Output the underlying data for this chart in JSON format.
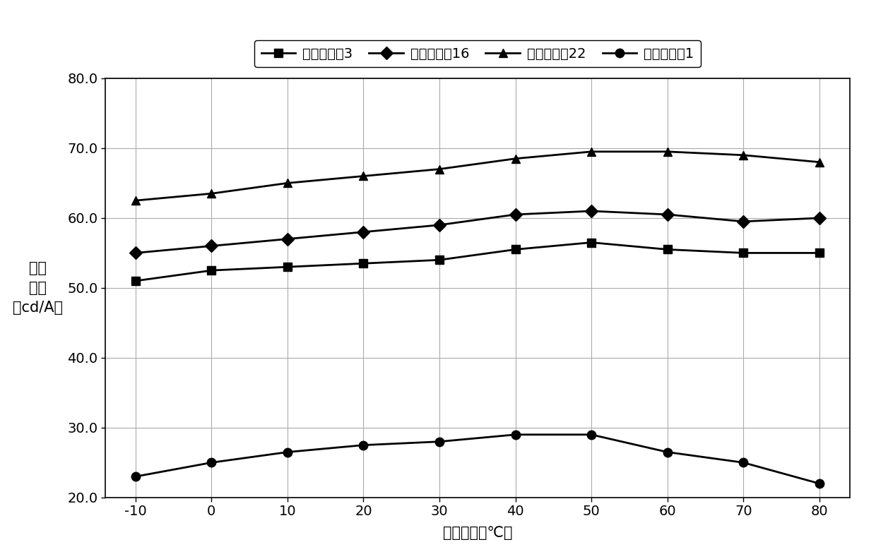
{
  "x": [
    -10,
    0,
    10,
    20,
    30,
    40,
    50,
    60,
    70,
    80
  ],
  "series_order": [
    "器件实施例3",
    "器件实施例16",
    "器件实施例22",
    "器件比较例1"
  ],
  "series": {
    "器件实施例3": {
      "y": [
        51.0,
        52.5,
        53.0,
        53.5,
        54.0,
        55.5,
        56.5,
        55.5,
        55.0,
        55.0
      ],
      "marker": "s",
      "label": "器件实施例3"
    },
    "器件实施例16": {
      "y": [
        55.0,
        56.0,
        57.0,
        58.0,
        59.0,
        60.5,
        61.0,
        60.5,
        59.5,
        60.0
      ],
      "marker": "D",
      "label": "器件实施例16"
    },
    "器件实施例22": {
      "y": [
        62.5,
        63.5,
        65.0,
        66.0,
        67.0,
        68.5,
        69.5,
        69.5,
        69.0,
        68.0
      ],
      "marker": "^",
      "label": "器件实施例22"
    },
    "器件比较例1": {
      "y": [
        23.0,
        25.0,
        26.5,
        27.5,
        28.0,
        29.0,
        29.0,
        26.5,
        25.0,
        22.0
      ],
      "marker": "o",
      "label": "器件比较例1"
    }
  },
  "line_color": "#000000",
  "ylabel_lines": [
    "电",
    "流",
    "效",
    "率",
    "（cd/A）"
  ],
  "xlabel": "测量温度（℃）",
  "ylim": [
    20.0,
    80.0
  ],
  "yticks": [
    20.0,
    30.0,
    40.0,
    50.0,
    60.0,
    70.0,
    80.0
  ],
  "ytick_labels": [
    "20.0",
    "30.0",
    "40.0",
    "50.0",
    "60.0",
    "70.0",
    "80.0"
  ],
  "xticks": [
    -10,
    0,
    10,
    20,
    30,
    40,
    50,
    60,
    70,
    80
  ],
  "axis_fontsize": 15,
  "tick_fontsize": 14,
  "legend_fontsize": 14,
  "background_color": "#ffffff",
  "grid_color": "#aaaaaa",
  "markersize": 9,
  "linewidth": 2.0
}
